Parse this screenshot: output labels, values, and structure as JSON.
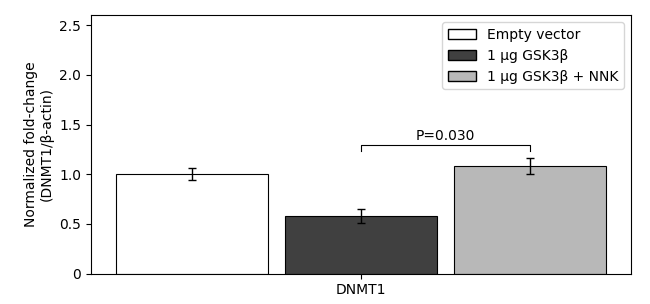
{
  "chart_data": {
    "type": "bar",
    "categories": [
      "DNMT1"
    ],
    "series": [
      {
        "name": "Empty vector",
        "color": "#ffffff",
        "values": [
          1.0
        ],
        "errors": [
          0.06
        ]
      },
      {
        "name": "1 μg GSK3β",
        "color": "#404040",
        "values": [
          0.58
        ],
        "errors": [
          0.07
        ]
      },
      {
        "name": "1 μg GSK3β + NNK",
        "color": "#b8b8b8",
        "values": [
          1.08
        ],
        "errors": [
          0.08
        ]
      }
    ],
    "y_label": "Normalized fold-change\n(DNMT1/β-actin)",
    "ylim": [
      0,
      2.6
    ],
    "yticks": [
      0,
      {
        "value": 0.5,
        "label": "0.5"
      },
      {
        "value": 1.0,
        "label": "1.0"
      },
      {
        "value": 1.5,
        "label": "1.5"
      },
      {
        "value": 2.0,
        "label": "2.0"
      },
      {
        "value": 2.5,
        "label": "2.5"
      }
    ],
    "annotations": [
      {
        "text": "P=0.030",
        "series": [
          "1 μg GSK3β",
          "1 μg GSK3β + NNK"
        ]
      }
    ],
    "legend": "upper right",
    "grid": false
  }
}
